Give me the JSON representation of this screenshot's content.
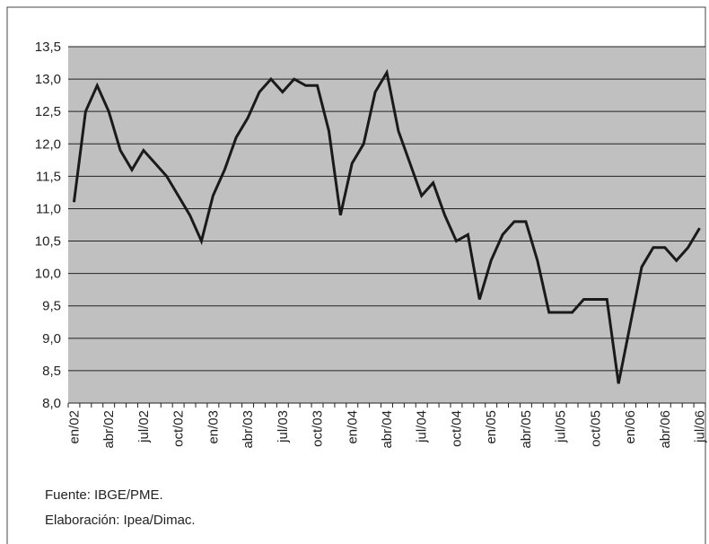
{
  "chart_data": {
    "type": "line",
    "categories": [
      "en/02",
      null,
      null,
      "abr/02",
      null,
      null,
      "jul/02",
      null,
      null,
      "oct/02",
      null,
      null,
      "en/03",
      null,
      null,
      "abr/03",
      null,
      null,
      "jul/03",
      null,
      null,
      "oct/03",
      null,
      null,
      "en/04",
      null,
      null,
      "abr/04",
      null,
      null,
      "jul/04",
      null,
      null,
      "oct/04",
      null,
      null,
      "en/05",
      null,
      null,
      "abr/05",
      null,
      null,
      "jul/05",
      null,
      null,
      "oct/05",
      null,
      null,
      "en/06",
      null,
      null,
      "abr/06",
      null,
      null,
      "jul/06"
    ],
    "values": [
      11.1,
      12.5,
      12.9,
      12.5,
      11.9,
      11.6,
      11.9,
      11.7,
      11.5,
      11.2,
      10.9,
      10.5,
      11.2,
      11.6,
      12.1,
      12.4,
      12.8,
      13.0,
      12.8,
      13.0,
      12.9,
      12.9,
      12.2,
      10.9,
      11.7,
      12.0,
      12.8,
      13.1,
      12.2,
      11.7,
      11.2,
      11.4,
      10.9,
      10.5,
      10.6,
      9.6,
      10.2,
      10.6,
      10.8,
      10.8,
      10.2,
      9.4,
      9.4,
      9.4,
      9.6,
      9.6,
      9.6,
      8.3,
      9.2,
      10.1,
      10.4,
      10.4,
      10.2,
      10.4,
      10.7
    ],
    "color": "#1a1a1a",
    "ylim": [
      8.0,
      13.5
    ],
    "yticks": [
      {
        "value": 8.0,
        "label": "8,0"
      },
      {
        "value": 8.5,
        "label": "8,5"
      },
      {
        "value": 9.0,
        "label": "9,0"
      },
      {
        "value": 9.5,
        "label": "9,5"
      },
      {
        "value": 10.0,
        "label": "10,0"
      },
      {
        "value": 10.5,
        "label": "10,5"
      },
      {
        "value": 11.0,
        "label": "11,0"
      },
      {
        "value": 11.5,
        "label": "11,5"
      },
      {
        "value": 12.0,
        "label": "12,0"
      },
      {
        "value": 12.5,
        "label": "12,5"
      },
      {
        "value": 13.0,
        "label": "13,0"
      },
      {
        "value": 13.5,
        "label": "13,5"
      }
    ],
    "grid": true,
    "notes": [
      "Fuente: IBGE/PME.",
      "Elaboración: Ipea/Dimac."
    ]
  }
}
